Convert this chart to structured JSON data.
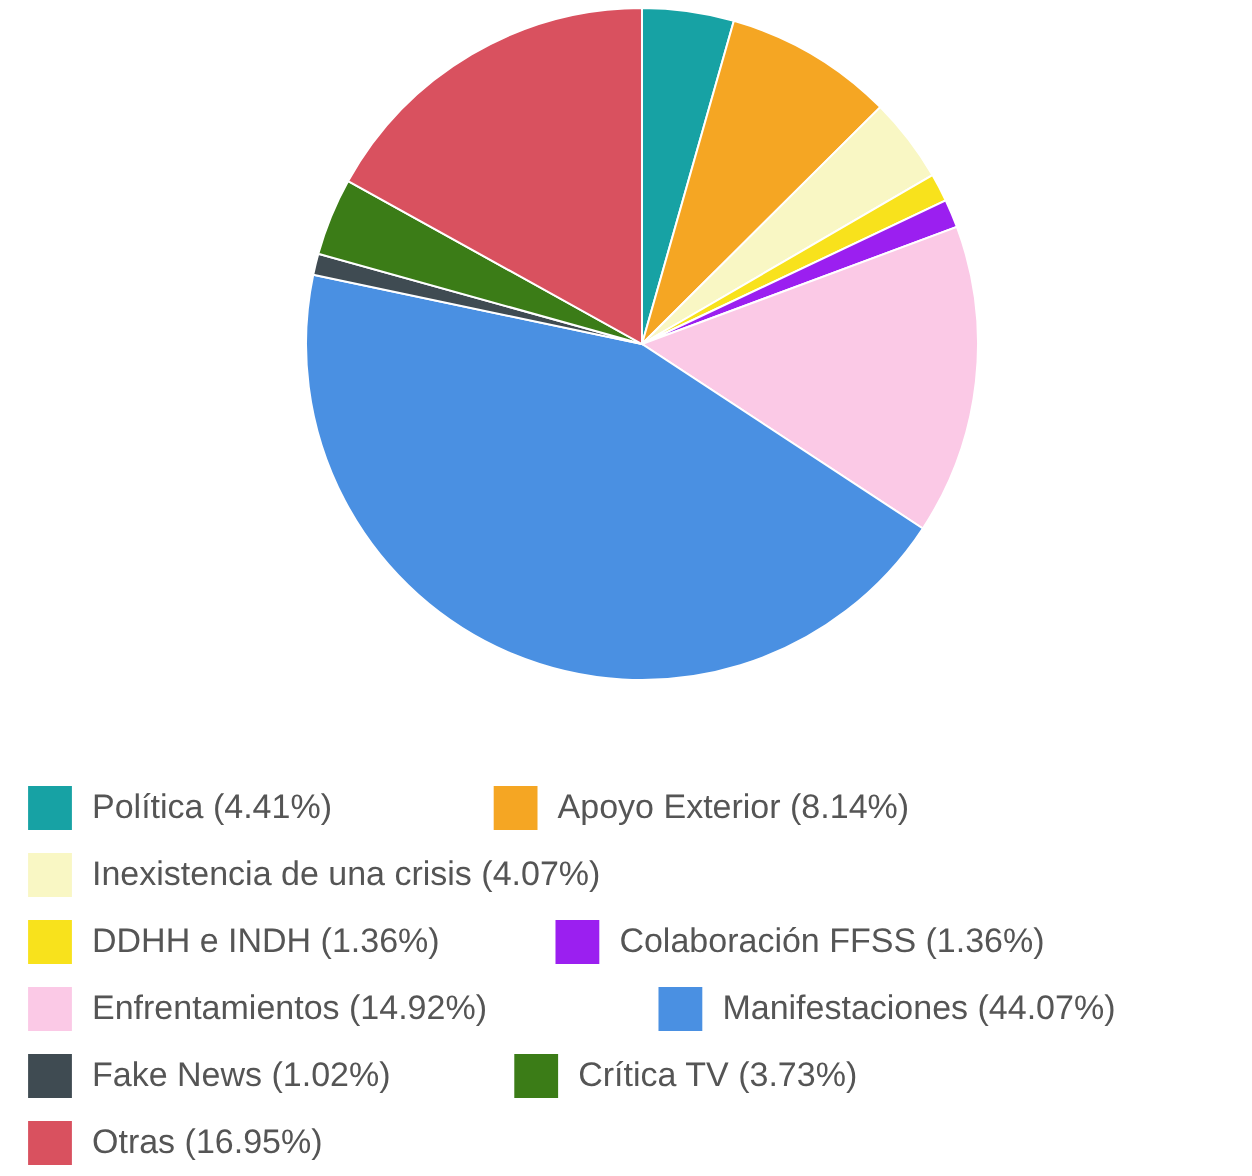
{
  "chart_data": {
    "type": "pie",
    "categories": [
      "Política",
      "Apoyo Exterior",
      "Inexistencia de una crisis",
      "DDHH e INDH",
      "Colaboración FFSS",
      "Enfrentamientos",
      "Manifestaciones",
      "Fake News",
      "Crítica TV",
      "Otras"
    ],
    "values": [
      4.41,
      8.14,
      4.07,
      1.36,
      1.36,
      14.92,
      44.07,
      1.02,
      3.73,
      16.95
    ],
    "value_labels": [
      "(4.41%)",
      "(8.14%)",
      "(4.07%)",
      "(1.36%)",
      "(1.36%)",
      "(14.92%)",
      "(44.07%)",
      "(1.02%)",
      "(3.73%)",
      "(16.95%)"
    ],
    "colors": [
      "#17a2a4",
      "#f5a623",
      "#f9f7c4",
      "#f8e21c",
      "#9b1ff0",
      "#fbc9e6",
      "#4a90e2",
      "#3f4b52",
      "#3b7c17",
      "#d9515f"
    ],
    "legend": "bottom"
  }
}
